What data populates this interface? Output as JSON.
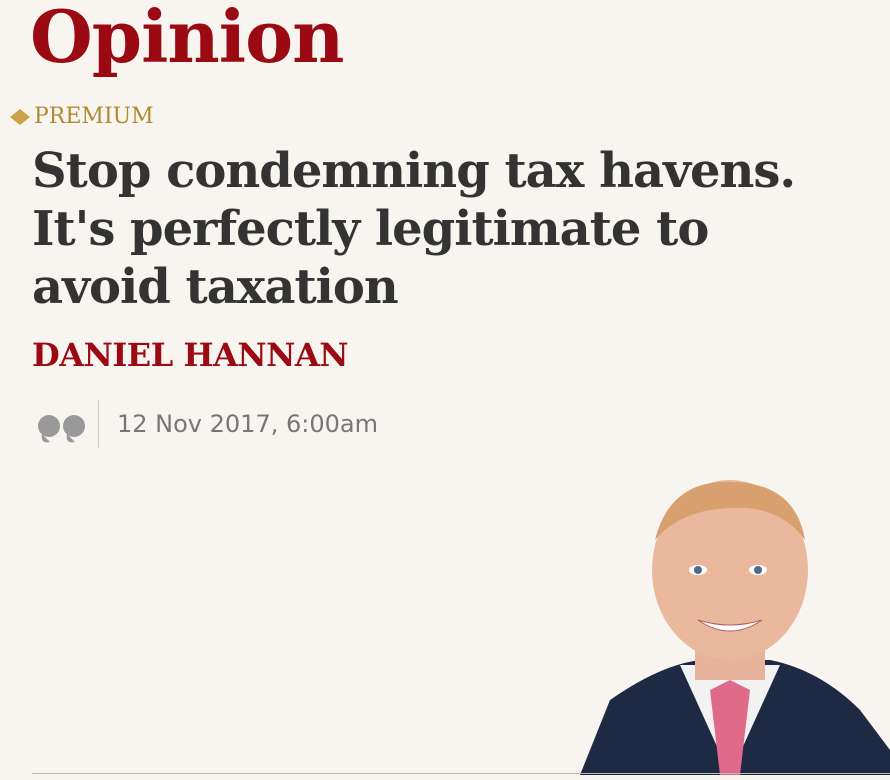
{
  "section": "Opinion",
  "badge": "PREMIUM",
  "headline": "Stop condemning tax havens. It's perfectly legitimate to avoid taxation",
  "author": "DANIEL HANNAN",
  "date": "12 Nov 2017, 6:00am"
}
